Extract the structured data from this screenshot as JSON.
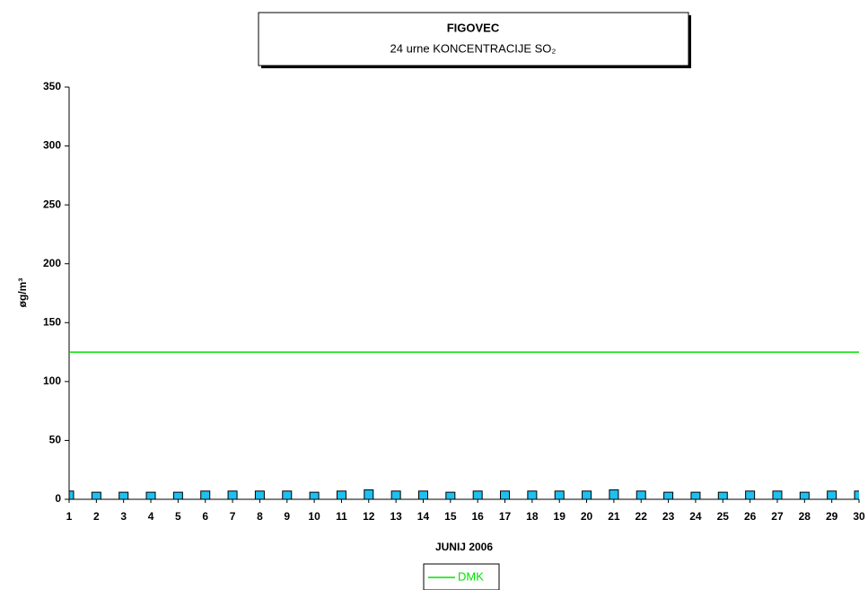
{
  "chart_data": {
    "type": "bar",
    "title": "FIGOVEC",
    "subtitle": "24 urne KONCENTRACIJE SO₂",
    "y_label": "øg/m³",
    "x_label": "JUNIJ 2006",
    "x": [
      1,
      2,
      3,
      4,
      5,
      6,
      7,
      8,
      9,
      10,
      11,
      12,
      13,
      14,
      15,
      16,
      17,
      18,
      19,
      20,
      21,
      22,
      23,
      24,
      25,
      26,
      27,
      28,
      29,
      30
    ],
    "values": [
      7,
      6,
      6,
      6,
      6,
      7,
      7,
      7,
      7,
      6,
      7,
      8,
      7,
      7,
      6,
      7,
      7,
      7,
      7,
      7,
      8,
      7,
      6,
      6,
      6,
      7,
      7,
      6,
      7,
      7
    ],
    "color": "#1ec0f0",
    "series": [
      {
        "name": "DMK",
        "color": "#00e000",
        "values": [
          125,
          125,
          125,
          125,
          125,
          125,
          125,
          125,
          125,
          125,
          125,
          125,
          125,
          125,
          125,
          125,
          125,
          125,
          125,
          125,
          125,
          125,
          125,
          125,
          125,
          125,
          125,
          125,
          125,
          125
        ]
      }
    ],
    "xlim": [
      1,
      30
    ],
    "xticks": [
      1,
      2,
      3,
      4,
      5,
      6,
      7,
      8,
      9,
      10,
      11,
      12,
      13,
      14,
      15,
      16,
      17,
      18,
      19,
      20,
      21,
      22,
      23,
      24,
      25,
      26,
      27,
      28,
      29,
      30
    ],
    "ylim": [
      0,
      350
    ],
    "yticks": [
      0,
      50,
      100,
      150,
      200,
      250,
      300,
      350
    ],
    "grid": false,
    "legend": "bottom"
  }
}
